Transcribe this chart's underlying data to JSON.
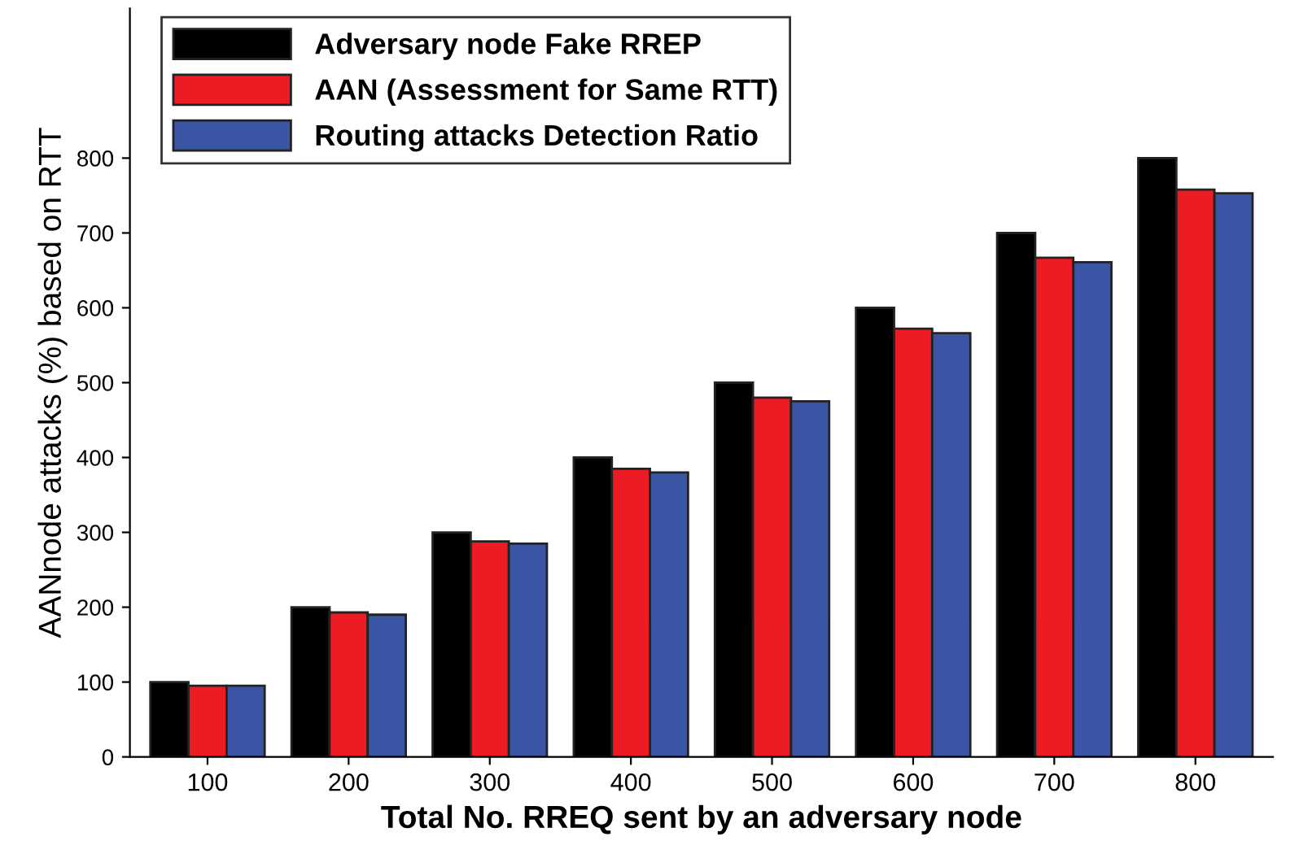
{
  "chart_data": {
    "type": "bar",
    "xlabel": "Total No. RREQ sent by an adversary node",
    "ylabel": "AANnode attacks (%) based on RTT",
    "categories": [
      "100",
      "200",
      "300",
      "400",
      "500",
      "600",
      "700",
      "800"
    ],
    "series": [
      {
        "name": "Adversary node Fake RREP",
        "color": "#000000",
        "values": [
          100,
          200,
          300,
          400,
          500,
          600,
          700,
          800
        ]
      },
      {
        "name": "AAN (Assessment for Same RTT)",
        "color": "#ed1c24",
        "values": [
          95,
          193,
          288,
          385,
          480,
          572,
          667,
          758
        ]
      },
      {
        "name": "Routing attacks Detection Ratio",
        "color": "#3a55a4",
        "values": [
          95,
          190,
          285,
          380,
          475,
          566,
          661,
          753
        ]
      }
    ],
    "ylim": [
      0,
      1000
    ],
    "yticks": [
      0,
      100,
      200,
      300,
      400,
      500,
      600,
      700,
      800
    ],
    "grid": false,
    "legend": "top left"
  }
}
